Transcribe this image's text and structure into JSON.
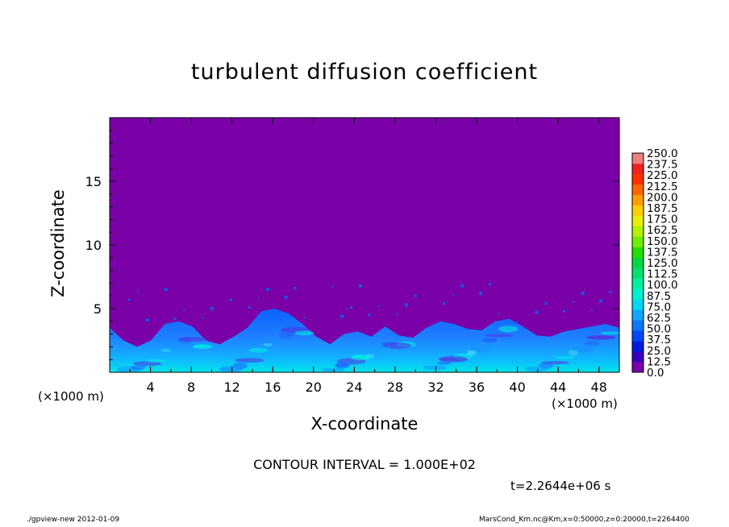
{
  "chart_data": {
    "type": "heatmap",
    "title": "turbulent diffusion coefficient",
    "xlabel": "X-coordinate",
    "ylabel": "Z-coordinate",
    "x_unit_left": "(×1000 m)",
    "x_unit_right": "(×1000 m)",
    "xlim": [
      0,
      50
    ],
    "ylim": [
      0,
      20
    ],
    "x_ticks": [
      "4",
      "8",
      "12",
      "16",
      "20",
      "24",
      "28",
      "32",
      "36",
      "40",
      "44",
      "48"
    ],
    "y_ticks": [
      "5",
      "10",
      "15"
    ],
    "contour_interval": "CONTOUR INTERVAL = 1.000E+02",
    "time": "t=2.2644e+06 s",
    "colorbar_levels": [
      "0.0",
      "12.5",
      "25.0",
      "37.5",
      "50.0",
      "62.5",
      "75.0",
      "87.5",
      "100.0",
      "112.5",
      "125.0",
      "137.5",
      "150.0",
      "162.5",
      "175.0",
      "187.5",
      "200.0",
      "212.5",
      "225.0",
      "237.5",
      "250.0"
    ],
    "colorbar_colors": [
      "#7a00a8",
      "#3a00c0",
      "#0018e0",
      "#0048ff",
      "#0a78ff",
      "#10a8ff",
      "#00d8f0",
      "#00f0d0",
      "#00f0a0",
      "#00e070",
      "#00d840",
      "#20e000",
      "#70ec00",
      "#b0f000",
      "#e8f000",
      "#ffd000",
      "#ffa000",
      "#ff6800",
      "#ff3000",
      "#f02020",
      "#f08080"
    ],
    "background_color": "#7a00a8",
    "boundary_layer_top_km": [
      3.5,
      2.5,
      2.0,
      2.5,
      3.8,
      4.0,
      3.6,
      2.5,
      2.2,
      2.8,
      3.5,
      4.8,
      5.0,
      4.6,
      3.8,
      2.8,
      2.2,
      3.0,
      3.2,
      2.8,
      3.6,
      2.9,
      2.7,
      3.5,
      4.0,
      3.8,
      3.4,
      3.3,
      4.0,
      4.2,
      3.6,
      2.9,
      2.8,
      3.2,
      3.4,
      3.6,
      3.8,
      3.5
    ],
    "footer_left": "./gpview-new   2012-01-09",
    "footer_right": "MarsCond_Km.nc@Km,x=0:50000,z=0:20000,t=2264400"
  }
}
